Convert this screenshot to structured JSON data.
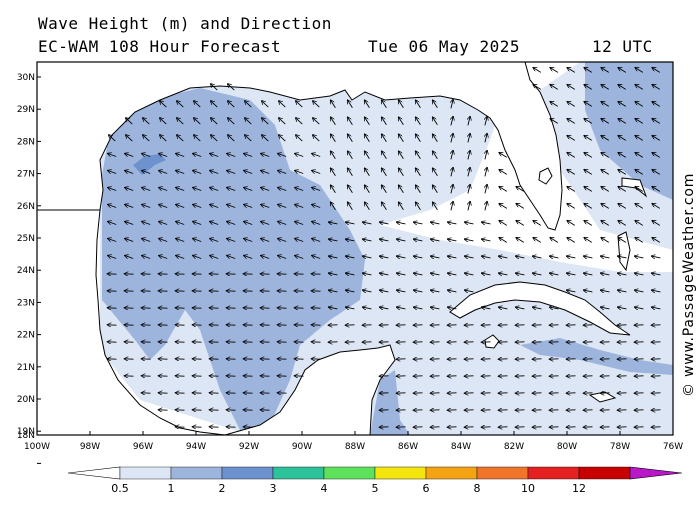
{
  "header": {
    "line1": "Wave Height (m) and Direction",
    "line2_left": "EC-WAM 108 Hour Forecast",
    "line2_date": "Tue 06 May 2025",
    "line2_time": "12 UTC"
  },
  "map": {
    "lat_labels": [
      "30N",
      "29N",
      "28N",
      "27N",
      "26N",
      "25N",
      "24N",
      "23N",
      "22N",
      "21N",
      "20N",
      "19N",
      "18N"
    ],
    "lon_labels": [
      "100W",
      "98W",
      "96W",
      "94W",
      "92W",
      "90W",
      "88W",
      "86W",
      "84W",
      "82W",
      "80W",
      "78W",
      "76W"
    ],
    "colors": {
      "land": "#ffffff",
      "sea_lt05": "#ffffff",
      "c05_1": "#dde6f5",
      "c1_2": "#9db5dc",
      "c2_3": "#6e92cd",
      "coast": "#000000",
      "arrow": "#000000"
    }
  },
  "credit": "© www.PassageWeather.com",
  "colorbar": {
    "labels": [
      "0.5",
      "1",
      "2",
      "3",
      "4",
      "5",
      "6",
      "8",
      "10",
      "12"
    ],
    "colors": [
      "#ffffff",
      "#dde6f5",
      "#9db5dc",
      "#6e92cd",
      "#2cc29a",
      "#5ee25c",
      "#f4e60c",
      "#f4a412",
      "#f0742a",
      "#e52020",
      "#c80000",
      "#b818c8"
    ]
  }
}
